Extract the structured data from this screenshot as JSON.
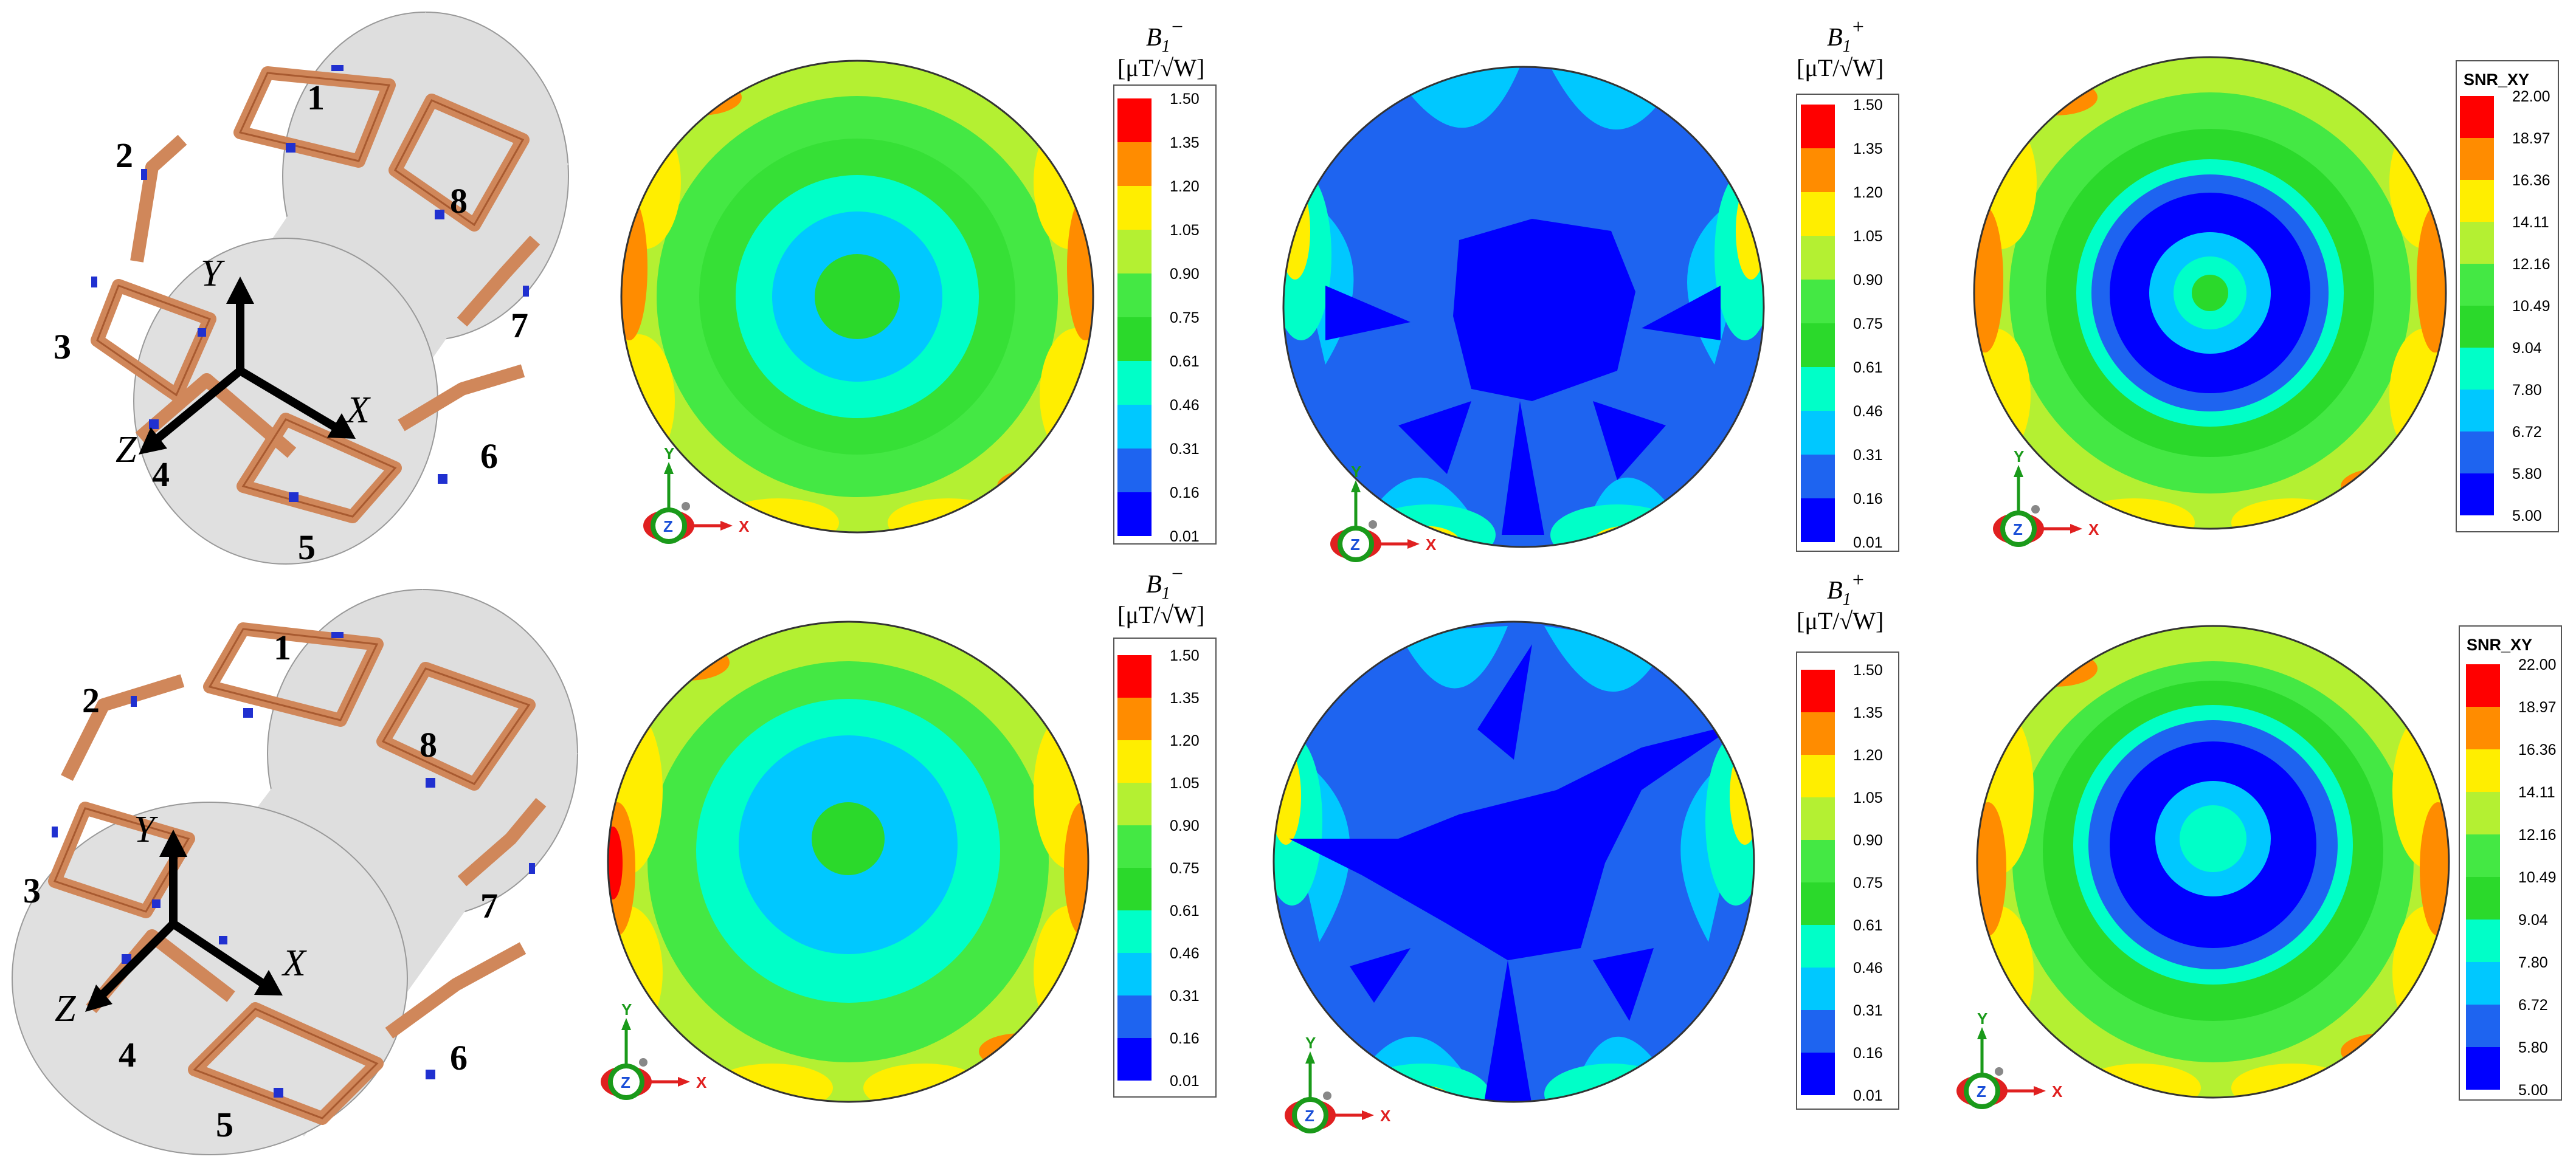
{
  "colors": {
    "c0": "#0000ff",
    "c1": "#1e64f0",
    "c2": "#00c8ff",
    "c3": "#00ffc8",
    "c4": "#2bd92b",
    "c5": "#44e844",
    "c6": "#b4f032",
    "c7": "#ffee00",
    "c8": "#ff8c00",
    "c9": "#ff0000",
    "coil": "#d0875a",
    "coil_stroke": "#a85a30",
    "capacitor": "#2030d0",
    "cylinder": "#dedede"
  },
  "rows": [
    {
      "coil_diagram": {
        "labels": [
          "1",
          "2",
          "3",
          "4",
          "5",
          "6",
          "7",
          "8"
        ],
        "axes": {
          "x": "X",
          "y": "Y",
          "z": "Z"
        }
      },
      "b1_minus": {
        "title_base": "B",
        "title_sub": "1",
        "title_sup": "−",
        "unit": "[μT/√W]",
        "ticks": [
          "1.50",
          "1.35",
          "1.20",
          "1.05",
          "0.90",
          "0.75",
          "0.61",
          "0.46",
          "0.31",
          "0.16",
          "0.01"
        ]
      },
      "b1_plus": {
        "title_base": "B",
        "title_sub": "1",
        "title_sup": "+",
        "unit": "[μT/√W]",
        "ticks": [
          "1.50",
          "1.35",
          "1.20",
          "1.05",
          "0.90",
          "0.75",
          "0.61",
          "0.46",
          "0.31",
          "0.16",
          "0.01"
        ]
      },
      "snr": {
        "title": "SNR_XY",
        "ticks": [
          "22.00",
          "18.97",
          "16.36",
          "14.11",
          "12.16",
          "10.49",
          "9.04",
          "7.80",
          "6.72",
          "5.80",
          "5.00"
        ]
      },
      "triad": {
        "y": "Y",
        "z": "Z",
        "x": "X"
      }
    },
    {
      "coil_diagram": {
        "labels": [
          "1",
          "2",
          "3",
          "4",
          "5",
          "6",
          "7",
          "8"
        ],
        "axes": {
          "x": "X",
          "y": "Y",
          "z": "Z"
        }
      },
      "b1_minus": {
        "title_base": "B",
        "title_sub": "1",
        "title_sup": "−",
        "unit": "[μT/√W]",
        "ticks": [
          "1.50",
          "1.35",
          "1.20",
          "1.05",
          "0.90",
          "0.75",
          "0.61",
          "0.46",
          "0.31",
          "0.16",
          "0.01"
        ]
      },
      "b1_plus": {
        "title_base": "B",
        "title_sub": "1",
        "title_sup": "+",
        "unit": "[μT/√W]",
        "ticks": [
          "1.50",
          "1.35",
          "1.20",
          "1.05",
          "0.90",
          "0.75",
          "0.61",
          "0.46",
          "0.31",
          "0.16",
          "0.01"
        ]
      },
      "snr": {
        "title": "SNR_XY",
        "ticks": [
          "22.00",
          "18.97",
          "16.36",
          "14.11",
          "12.16",
          "10.49",
          "9.04",
          "7.80",
          "6.72",
          "5.80",
          "5.00"
        ]
      },
      "triad": {
        "y": "Y",
        "z": "Z",
        "x": "X"
      }
    }
  ]
}
